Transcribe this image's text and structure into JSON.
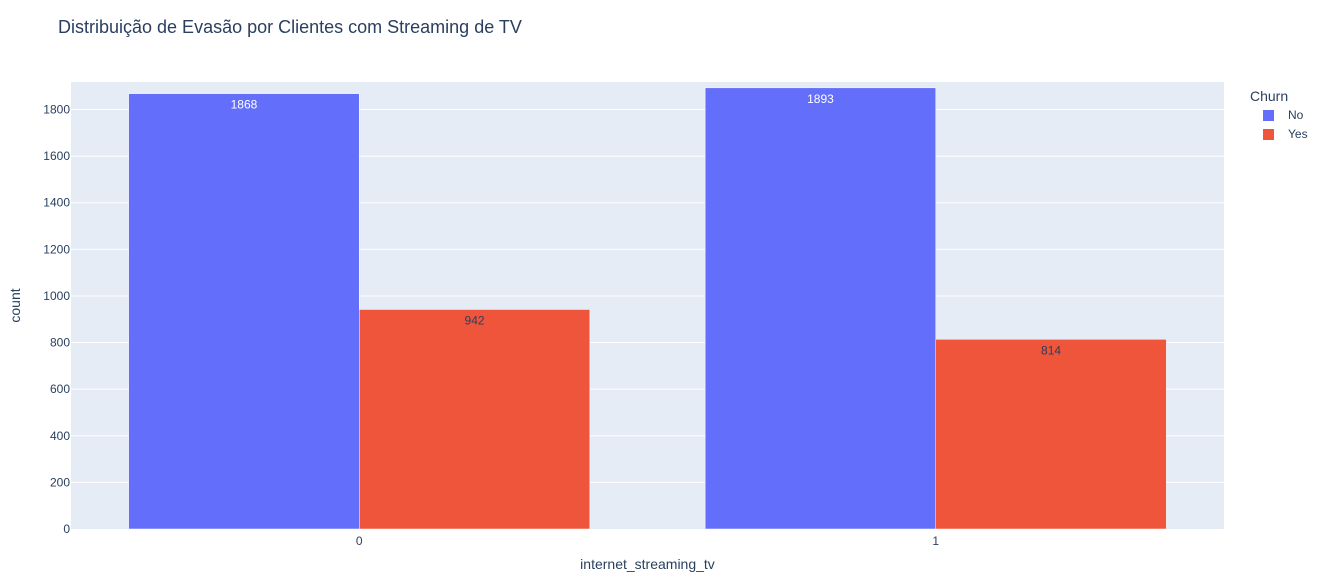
{
  "chart_data": {
    "type": "bar",
    "title": "Distribuição de Evasão por Clientes com Streaming de TV",
    "xlabel": "internet_streaming_tv",
    "ylabel": "count",
    "categories": [
      "0",
      "1"
    ],
    "series": [
      {
        "name": "No",
        "values": [
          1868,
          1893
        ],
        "color": "#636efa",
        "label_color": "#ffffff"
      },
      {
        "name": "Yes",
        "values": [
          942,
          814
        ],
        "color": "#ef553b",
        "label_color": "#2a3f5f"
      }
    ],
    "ylim": [
      0,
      1918
    ],
    "yticks": [
      0,
      200,
      400,
      600,
      800,
      1000,
      1200,
      1400,
      1600,
      1800
    ],
    "legend": {
      "title": "Churn",
      "placement": "top-right"
    },
    "grid": true,
    "barmode": "group",
    "colors": {
      "plot_bg": "#e5ecf6",
      "grid": "#ffffff",
      "text": "#2a3f5f"
    }
  }
}
